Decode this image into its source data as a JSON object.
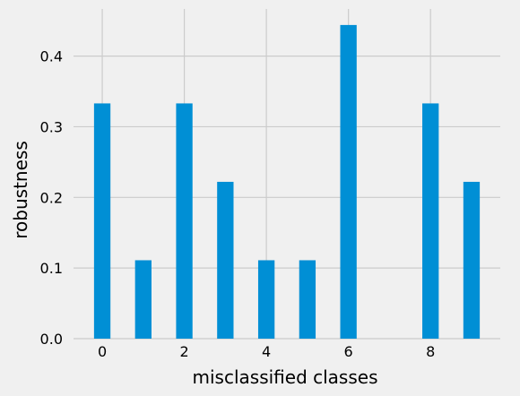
{
  "chart_data": {
    "type": "bar",
    "title": "",
    "xlabel": "misclassified classes",
    "ylabel": "robustness",
    "x": [
      0,
      1,
      2,
      3,
      4,
      5,
      6,
      7,
      8,
      9
    ],
    "values": [
      0.333,
      0.111,
      0.333,
      0.222,
      0.111,
      0.111,
      0.444,
      0.0,
      0.333,
      0.222
    ],
    "xticks": [
      "0",
      "2",
      "4",
      "6",
      "8"
    ],
    "yticks": [
      "0.0",
      "0.1",
      "0.2",
      "0.3",
      "0.4"
    ],
    "xlim": [
      -0.7,
      9.7
    ],
    "ylim": [
      0,
      0.4667
    ],
    "grid": true,
    "bar_color": "#008fd5",
    "background": "#f0f0f0",
    "grid_color": "#cbcbcb"
  }
}
